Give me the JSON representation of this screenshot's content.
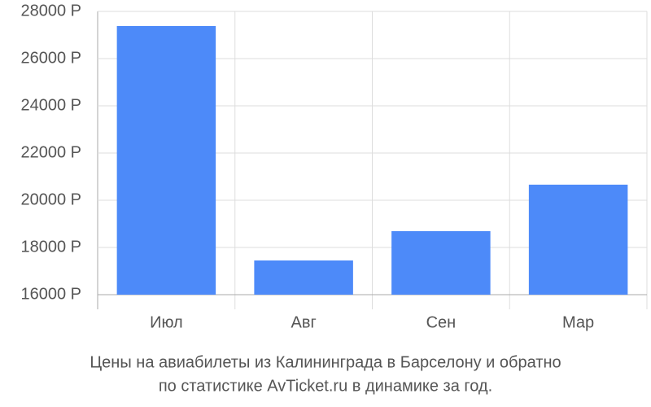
{
  "chart_data": {
    "type": "bar",
    "title": [
      "Цены на авиабилеты из Калининграда в Барселону и обратно",
      "по статистике AvTicket.ru в динамике за год."
    ],
    "categories": [
      "Июл",
      "Авг",
      "Сен",
      "Мар"
    ],
    "values": [
      27380,
      17450,
      18690,
      20660
    ],
    "color": "#4d8af9",
    "ylim": [
      16000,
      28000
    ],
    "yticks": [
      {
        "value": 16000,
        "label": "16000 Р"
      },
      {
        "value": 18000,
        "label": "18000 Р"
      },
      {
        "value": 20000,
        "label": "20000 Р"
      },
      {
        "value": 22000,
        "label": "22000 Р"
      },
      {
        "value": 24000,
        "label": "24000 Р"
      },
      {
        "value": 26000,
        "label": "26000 Р"
      },
      {
        "value": 28000,
        "label": "28000 Р"
      }
    ],
    "grid": true
  }
}
